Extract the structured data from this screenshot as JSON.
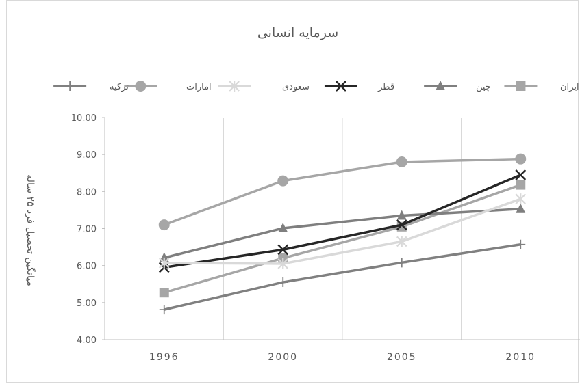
{
  "chart_data": {
    "type": "line",
    "title": "سرمایه انسانی",
    "ylabel": "میانگین تحصیل فرد ۲۵ ساله",
    "xlabel": "",
    "categories": [
      "1996",
      "2000",
      "2005",
      "2010"
    ],
    "ylim": [
      4.0,
      10.0
    ],
    "yticks": [
      "4.00",
      "5.00",
      "6.00",
      "7.00",
      "8.00",
      "9.00",
      "10.00"
    ],
    "grid": "vertical",
    "legend_position": "top",
    "series": [
      {
        "name": "ایران",
        "values": [
          5.27,
          6.2,
          7.05,
          8.18
        ],
        "color": "#a6a6a6",
        "marker": "square"
      },
      {
        "name": "چین",
        "values": [
          6.21,
          7.01,
          7.35,
          7.53
        ],
        "color": "#7f7f7f",
        "marker": "triangle"
      },
      {
        "name": "قطر",
        "values": [
          5.95,
          6.43,
          7.1,
          8.45
        ],
        "color": "#262626",
        "marker": "x"
      },
      {
        "name": "سعودی",
        "values": [
          6.07,
          6.05,
          6.65,
          7.8
        ],
        "color": "#d9d9d9",
        "marker": "star"
      },
      {
        "name": "امارات",
        "values": [
          7.1,
          8.29,
          8.8,
          8.88
        ],
        "color": "#a6a6a6",
        "marker": "circle"
      },
      {
        "name": "ترکیه",
        "values": [
          4.81,
          5.55,
          6.08,
          6.57
        ],
        "color": "#808080",
        "marker": "plus"
      }
    ]
  }
}
